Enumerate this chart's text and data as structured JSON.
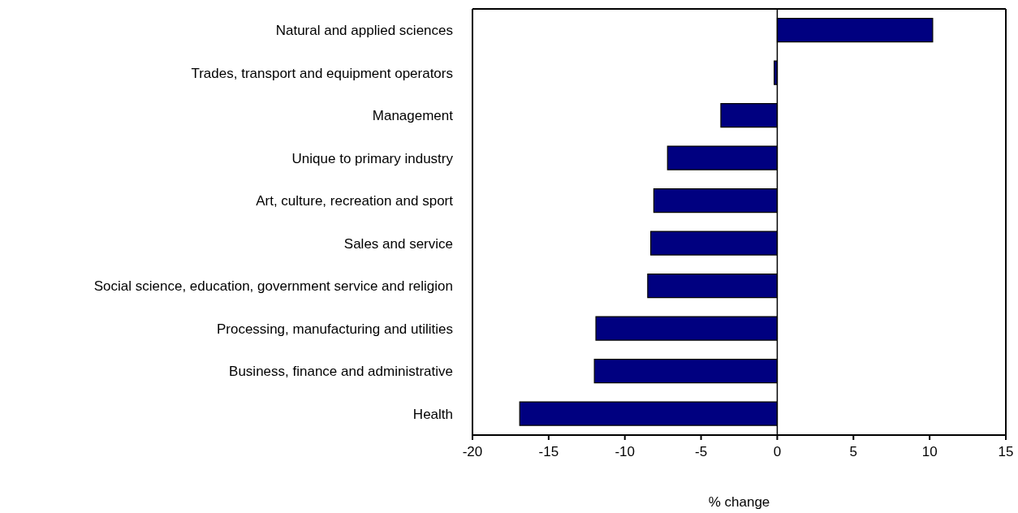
{
  "chart_data": {
    "type": "bar",
    "orientation": "horizontal",
    "xlabel": "% change",
    "categories": [
      "Natural and applied sciences",
      "Trades, transport and equipment operators",
      "Management",
      "Unique to primary industry",
      "Art, culture, recreation and sport",
      "Sales and service",
      "Social science, education, government service and religion",
      "Processing, manufacturing and utilities",
      "Business, finance and administrative",
      "Health"
    ],
    "values": [
      10.2,
      -0.2,
      -3.7,
      -7.2,
      -8.1,
      -8.3,
      -8.5,
      -11.9,
      -12.0,
      -16.9
    ],
    "color": "#000080",
    "xlim": [
      -20,
      15
    ],
    "xticks": [
      -20,
      -15,
      -10,
      -5,
      0,
      5,
      10,
      15
    ],
    "ref_lines": [
      {
        "axis": "x",
        "value": 0,
        "color": "#000000"
      }
    ],
    "grid": false,
    "legend": false
  }
}
